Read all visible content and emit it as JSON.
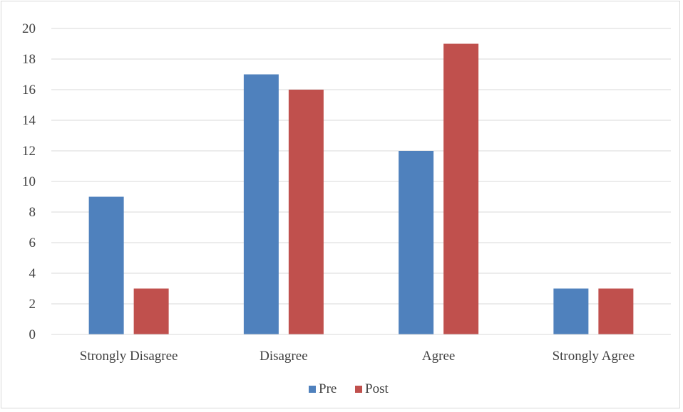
{
  "chart_data": {
    "type": "bar",
    "title": "",
    "xlabel": "",
    "ylabel": "",
    "categories": [
      "Strongly Disagree",
      "Disagree",
      "Agree",
      "Strongly Agree"
    ],
    "series": [
      {
        "name": "Pre",
        "values": [
          9,
          17,
          12,
          3
        ],
        "color": "#4f81bd"
      },
      {
        "name": "Post",
        "values": [
          3,
          16,
          19,
          3
        ],
        "color": "#c0504d"
      }
    ],
    "ylim": [
      0,
      20
    ],
    "yticks": [
      "0",
      "2",
      "4",
      "6",
      "8",
      "10",
      "12",
      "14",
      "16",
      "18",
      "20"
    ],
    "grid": true,
    "legend_position": "bottom"
  }
}
